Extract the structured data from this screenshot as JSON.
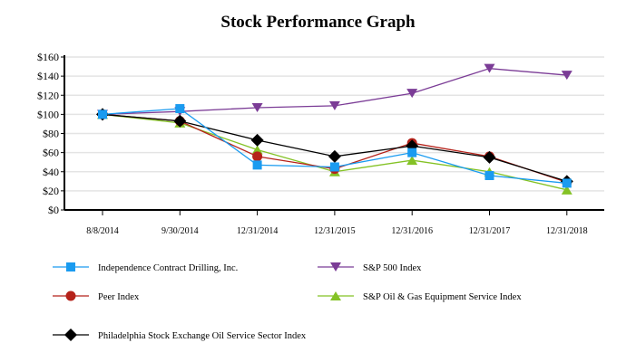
{
  "chart_data": {
    "type": "line",
    "title": "Stock Performance Graph",
    "categories": [
      "8/8/2014",
      "9/30/2014",
      "12/31/2014",
      "12/31/2015",
      "12/31/2016",
      "12/31/2017",
      "12/31/2018"
    ],
    "ylim": [
      0,
      160
    ],
    "yticks": [
      "$0",
      "$20",
      "$40",
      "$60",
      "$80",
      "$100",
      "$120",
      "$140",
      "$160"
    ],
    "grid": true,
    "legend_placement": "bottom",
    "series": [
      {
        "name": "Independence Contract Drilling, Inc.",
        "color": "#1a9bf0",
        "marker": "square",
        "values": [
          100,
          106,
          47,
          45,
          60,
          36,
          28
        ]
      },
      {
        "name": "S&P 500 Index",
        "color": "#7b3c96",
        "marker": "triangle-down",
        "values": [
          100,
          103,
          107,
          109,
          122,
          148,
          141
        ]
      },
      {
        "name": "Peer Index",
        "color": "#b5221a",
        "marker": "circle",
        "values": [
          100,
          93,
          56,
          43,
          70,
          56,
          29
        ]
      },
      {
        "name": "S&P Oil & Gas Equipment Service Index",
        "color": "#84c225",
        "marker": "triangle-up",
        "values": [
          100,
          91,
          63,
          40,
          52,
          40,
          21
        ]
      },
      {
        "name": "Philadelphia Stock Exchange Oil Service Sector Index",
        "color": "#000000",
        "marker": "diamond",
        "values": [
          100,
          93,
          73,
          56,
          67,
          55,
          30
        ]
      }
    ]
  }
}
